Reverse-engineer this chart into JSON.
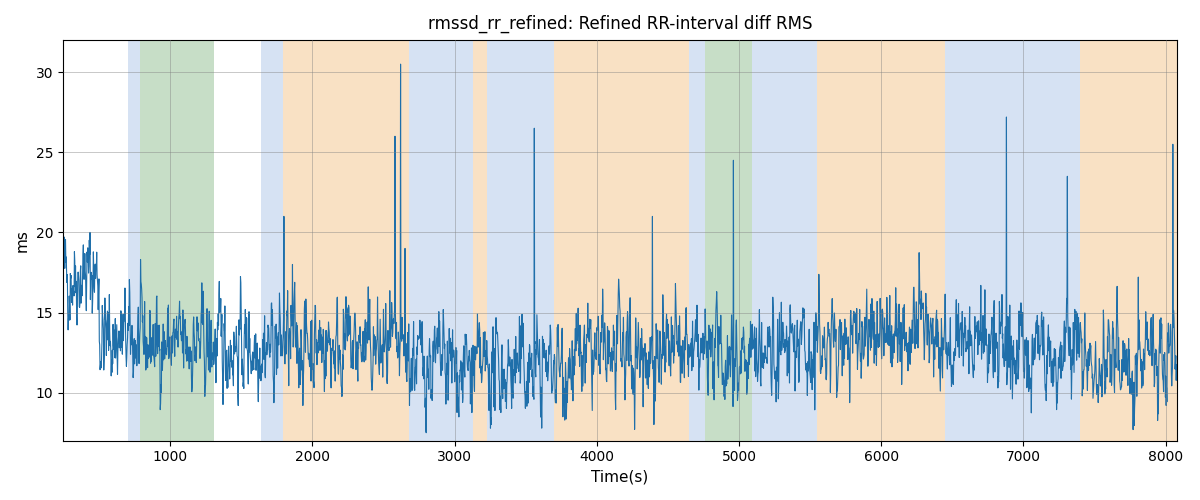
{
  "title": "rmssd_rr_refined: Refined RR-interval diff RMS",
  "xlabel": "Time(s)",
  "ylabel": "ms",
  "xlim": [
    245,
    8080
  ],
  "ylim": [
    7,
    32
  ],
  "line_color": "#1f6faa",
  "line_width": 0.8,
  "figsize": [
    12.0,
    5.0
  ],
  "dpi": 100,
  "bands": [
    {
      "xmin": 700,
      "xmax": 790,
      "color": "#aec6e8",
      "alpha": 0.5
    },
    {
      "xmin": 790,
      "xmax": 1310,
      "color": "#90bf90",
      "alpha": 0.5
    },
    {
      "xmin": 1640,
      "xmax": 1790,
      "color": "#aec6e8",
      "alpha": 0.5
    },
    {
      "xmin": 1790,
      "xmax": 2680,
      "color": "#f5c48a",
      "alpha": 0.5
    },
    {
      "xmin": 2680,
      "xmax": 3130,
      "color": "#aec6e8",
      "alpha": 0.5
    },
    {
      "xmin": 3130,
      "xmax": 3230,
      "color": "#f5c48a",
      "alpha": 0.5
    },
    {
      "xmin": 3230,
      "xmax": 3700,
      "color": "#aec6e8",
      "alpha": 0.5
    },
    {
      "xmin": 3700,
      "xmax": 4650,
      "color": "#f5c48a",
      "alpha": 0.5
    },
    {
      "xmin": 4650,
      "xmax": 4760,
      "color": "#aec6e8",
      "alpha": 0.5
    },
    {
      "xmin": 4760,
      "xmax": 5090,
      "color": "#90bf90",
      "alpha": 0.5
    },
    {
      "xmin": 5090,
      "xmax": 5550,
      "color": "#aec6e8",
      "alpha": 0.5
    },
    {
      "xmin": 5550,
      "xmax": 6450,
      "color": "#f5c48a",
      "alpha": 0.5
    },
    {
      "xmin": 6450,
      "xmax": 7250,
      "color": "#aec6e8",
      "alpha": 0.5
    },
    {
      "xmin": 7250,
      "xmax": 7400,
      "color": "#aec6e8",
      "alpha": 0.5
    },
    {
      "xmin": 7400,
      "xmax": 8080,
      "color": "#f5c48a",
      "alpha": 0.5
    }
  ],
  "xticks": [
    1000,
    2000,
    3000,
    4000,
    5000,
    6000,
    7000,
    8000
  ],
  "yticks": [
    10,
    15,
    20,
    25,
    30
  ],
  "seed": 42,
  "n_points": 3000,
  "t_start": 245,
  "t_end": 8080
}
